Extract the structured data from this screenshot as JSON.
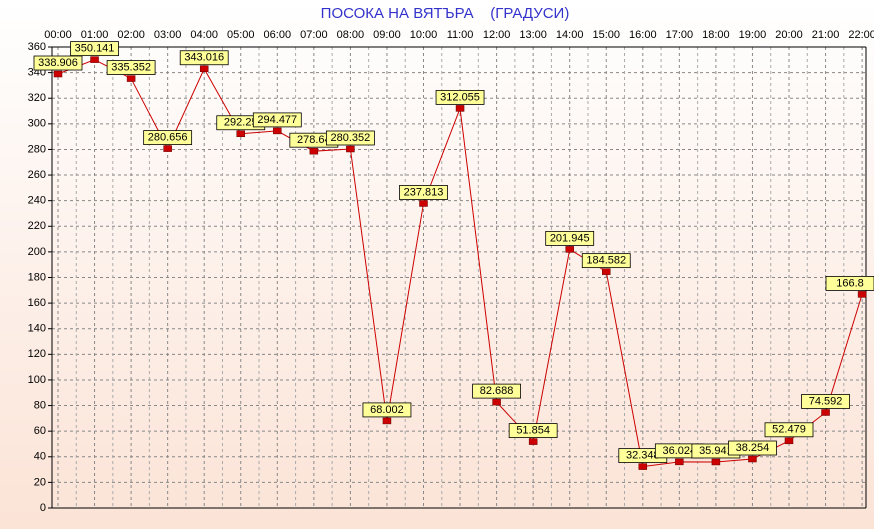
{
  "chart_data": {
    "type": "line",
    "title": "ПОСОКА НА ВЯТЪРА    (ГРАДУСИ)",
    "categories": [
      "00:00",
      "01:00",
      "02:00",
      "03:00",
      "04:00",
      "05:00",
      "06:00",
      "07:00",
      "08:00",
      "09:00",
      "10:00",
      "11:00",
      "12:00",
      "13:00",
      "14:00",
      "15:00",
      "16:00",
      "17:00",
      "18:00",
      "19:00",
      "20:00",
      "21:00",
      "22:00"
    ],
    "series": [
      {
        "color": "#cc0000",
        "values": [
          338.906,
          350.141,
          335.352,
          280.656,
          343.016,
          292.25,
          294.477,
          278.64,
          280.352,
          68.002,
          237.813,
          312.055,
          82.688,
          51.854,
          201.945,
          184.582,
          32.348,
          36.024,
          35.941,
          38.254,
          52.479,
          74.592,
          166.8
        ]
      }
    ],
    "ylim": [
      0,
      360
    ],
    "yticks": [
      0,
      20,
      40,
      60,
      80,
      100,
      120,
      140,
      160,
      180,
      200,
      220,
      240,
      260,
      280,
      300,
      320,
      340,
      360
    ],
    "grid": true
  }
}
